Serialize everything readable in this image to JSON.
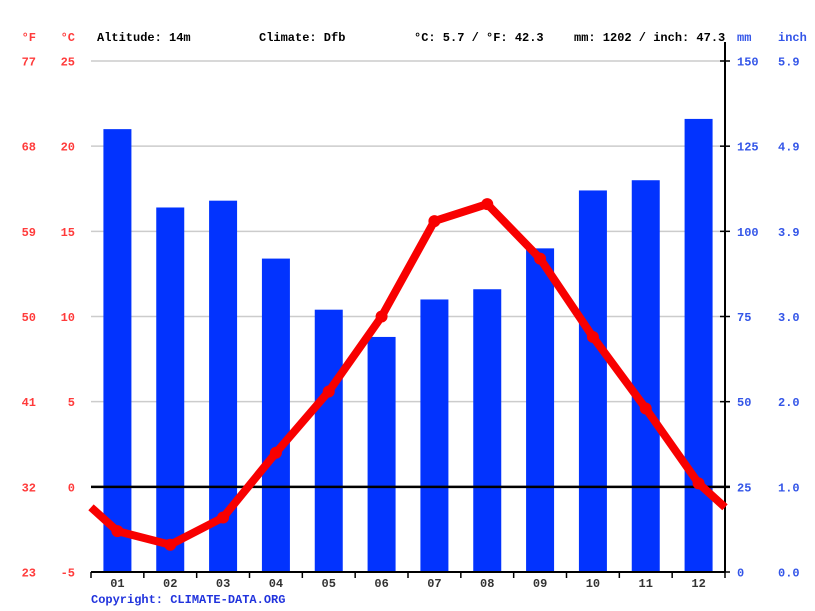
{
  "header": {
    "unit_f": "°F",
    "unit_c": "°C",
    "altitude": "Altitude: 14m",
    "climate": "Climate: Dfb",
    "avg_temp": "°C: 5.7 / °F: 42.3",
    "precip_total": "mm: 1202 / inch: 47.3",
    "unit_mm": "mm",
    "unit_inch": "inch"
  },
  "footer": {
    "copyright_label": "Copyright: ",
    "copyright_link": "CLIMATE-DATA.ORG"
  },
  "colors": {
    "bar_blue": "#0233fe",
    "line_red": "#f80000",
    "axis_label_red": "#ff3b3b",
    "axis_label_blue": "#3355e8",
    "month_label": "#333333",
    "grid_gray": "#cccccc",
    "axis_black": "#000000",
    "copyright_blue": "#2133dd",
    "background": "#ffffff"
  },
  "chart_data": {
    "type": "bar+line",
    "title": "Climate graph (climograph): monthly precipitation bars and temperature line",
    "categories": [
      "01",
      "02",
      "03",
      "04",
      "05",
      "06",
      "07",
      "08",
      "09",
      "10",
      "11",
      "12"
    ],
    "series": [
      {
        "name": "Precipitation (mm)",
        "kind": "bar",
        "values": [
          130,
          107,
          109,
          92,
          77,
          69,
          80,
          83,
          95,
          112,
          115,
          133
        ]
      },
      {
        "name": "Temperature (°C)",
        "kind": "line",
        "values": [
          -2.6,
          -3.4,
          -1.8,
          2.0,
          5.6,
          10.0,
          15.6,
          16.6,
          13.4,
          8.8,
          4.6,
          0.2
        ],
        "edge_values": {
          "left": -1.2,
          "right": -1.2
        }
      }
    ],
    "axes": {
      "left_fahrenheit": {
        "label": "°F",
        "ticks": [
          77,
          68,
          59,
          50,
          41,
          32,
          23
        ]
      },
      "left_celsius": {
        "label": "°C",
        "ticks": [
          25,
          20,
          15,
          10,
          5,
          0,
          -5
        ],
        "range": [
          -5,
          25
        ]
      },
      "right_mm": {
        "label": "mm",
        "ticks": [
          150,
          125,
          100,
          75,
          50,
          25,
          0
        ],
        "range": [
          0,
          150
        ]
      },
      "right_inch": {
        "label": "inch",
        "ticks": [
          "5.9",
          "4.9",
          "3.9",
          "3.0",
          "2.0",
          "1.0",
          "0.0"
        ]
      }
    },
    "grid": "horizontal gridlines on, zero-degree line black",
    "legend_position": "none"
  }
}
